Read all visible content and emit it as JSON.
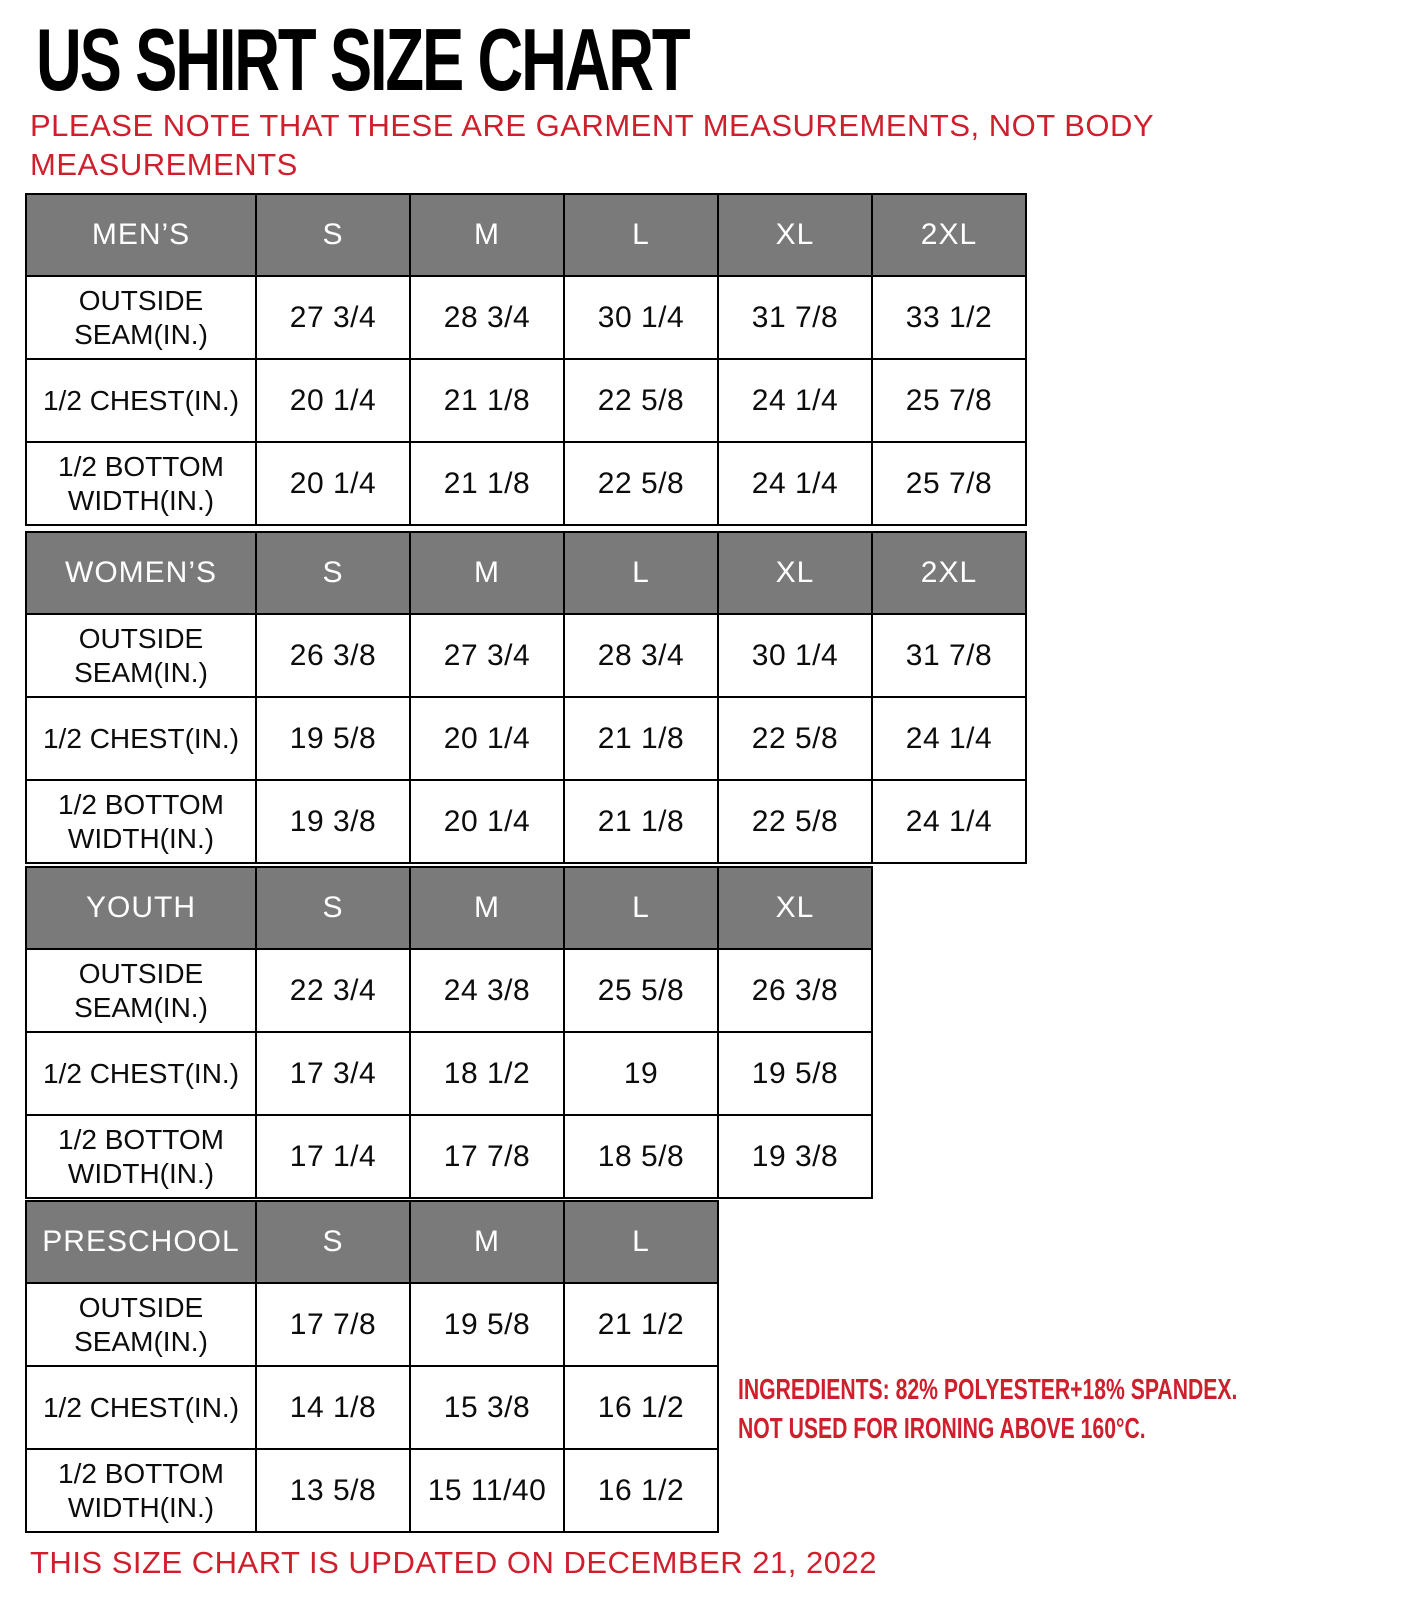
{
  "page_title": "US SHIRT SIZE CHART",
  "note": {
    "line1": "PLEASE NOTE THAT THESE ARE GARMENT MEASUREMENTS, NOT BODY",
    "line2": "MEASUREMENTS"
  },
  "tables": [
    {
      "id": "mens",
      "header": [
        "MEN’S",
        "S",
        "M",
        "L",
        "XL",
        "2XL"
      ],
      "rows": [
        {
          "label": "OUTSIDE SEAM(IN.)",
          "values": [
            "27 3/4",
            "28 3/4",
            "30 1/4",
            "31 7/8",
            "33 1/2"
          ]
        },
        {
          "label": "1/2 CHEST(IN.)",
          "values": [
            "20 1/4",
            "21 1/8",
            "22 5/8",
            "24 1/4",
            "25 7/8"
          ]
        },
        {
          "label": "1/2 BOTTOM WIDTH(IN.)",
          "values": [
            "20 1/4",
            "21 1/8",
            "22 5/8",
            "24 1/4",
            "25 7/8"
          ]
        }
      ]
    },
    {
      "id": "womens",
      "header": [
        "WOMEN’S",
        "S",
        "M",
        "L",
        "XL",
        "2XL"
      ],
      "rows": [
        {
          "label": "OUTSIDE SEAM(IN.)",
          "values": [
            "26 3/8",
            "27 3/4",
            "28 3/4",
            "30 1/4",
            "31 7/8"
          ]
        },
        {
          "label": "1/2 CHEST(IN.)",
          "values": [
            "19 5/8",
            "20 1/4",
            "21 1/8",
            "22 5/8",
            "24 1/4"
          ]
        },
        {
          "label": "1/2 BOTTOM WIDTH(IN.)",
          "values": [
            "19 3/8",
            "20 1/4",
            "21 1/8",
            "22 5/8",
            "24 1/4"
          ]
        }
      ]
    },
    {
      "id": "youth",
      "header": [
        "YOUTH",
        "S",
        "M",
        "L",
        "XL"
      ],
      "rows": [
        {
          "label": "OUTSIDE SEAM(IN.)",
          "values": [
            "22 3/4",
            "24 3/8",
            "25 5/8",
            "26 3/8"
          ]
        },
        {
          "label": "1/2 CHEST(IN.)",
          "values": [
            "17 3/4",
            "18 1/2",
            "19",
            "19 5/8"
          ]
        },
        {
          "label": "1/2 BOTTOM WIDTH(IN.)",
          "values": [
            "17 1/4",
            "17 7/8",
            "18 5/8",
            "19 3/8"
          ]
        }
      ]
    },
    {
      "id": "preschool",
      "header": [
        "PRESCHOOL",
        "S",
        "M",
        "L"
      ],
      "rows": [
        {
          "label": "OUTSIDE SEAM(IN.)",
          "values": [
            "17 7/8",
            "19 5/8",
            "21 1/2"
          ]
        },
        {
          "label": "1/2 CHEST(IN.)",
          "values": [
            "14 1/8",
            "15 3/8",
            "16 1/2"
          ]
        },
        {
          "label": "1/2 BOTTOM WIDTH(IN.)",
          "values": [
            "13 5/8",
            "15 11/40",
            "16 1/2"
          ]
        }
      ]
    }
  ],
  "ingredients": {
    "line1": "INGREDIENTS: 82% POLYESTER+18% SPANDEX.",
    "line2": "NOT USED FOR IRONING ABOVE 160°C."
  },
  "footer_note": "THIS SIZE CHART IS UPDATED ON DECEMBER 21, 2022",
  "colors": {
    "header_bg": "#7a7a7a",
    "header_text": "#ffffff",
    "accent_red": "#cf1f2d",
    "border": "#000000",
    "body_text": "#0c0c0c"
  }
}
